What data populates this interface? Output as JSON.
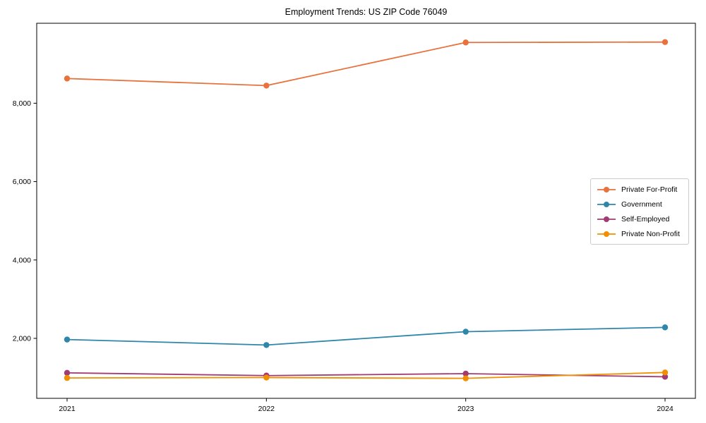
{
  "chart_data": {
    "type": "line",
    "title": "Employment Trends: US ZIP Code 76049",
    "xlabel": "",
    "ylabel": "",
    "x": [
      "2021",
      "2022",
      "2023",
      "2024"
    ],
    "series": [
      {
        "name": "Private For-Profit",
        "color": "#E8713C",
        "values": [
          8630,
          8450,
          9550,
          9560
        ]
      },
      {
        "name": "Government",
        "color": "#2E86AB",
        "values": [
          1970,
          1830,
          2170,
          2280
        ]
      },
      {
        "name": "Self-Employed",
        "color": "#A23B72",
        "values": [
          1120,
          1050,
          1100,
          1020
        ]
      },
      {
        "name": "Private Non-Profit",
        "color": "#F18F01",
        "values": [
          990,
          1000,
          980,
          1130
        ]
      }
    ],
    "yticks": [
      2000,
      4000,
      6000,
      8000
    ],
    "ytick_labels": [
      "2,000",
      "4,000",
      "6,000",
      "8,000"
    ],
    "ylim": [
      470,
      10040
    ],
    "grid": false,
    "legend_position": "center right",
    "marker": "circle",
    "line_width": 1.8,
    "axis_color": "#000000"
  }
}
